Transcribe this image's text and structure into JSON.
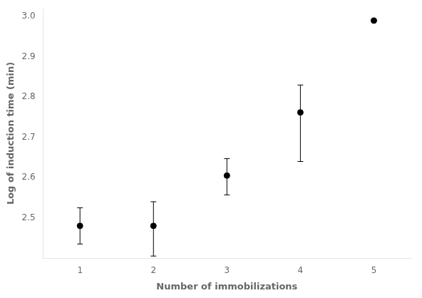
{
  "chart_data": {
    "type": "scatter",
    "x": [
      1,
      2,
      3,
      4,
      5
    ],
    "values": [
      2.48,
      2.48,
      2.605,
      2.762,
      2.99
    ],
    "yerr_upper": [
      0.045,
      0.06,
      0.042,
      0.068,
      0.0
    ],
    "yerr_lower": [
      0.045,
      0.075,
      0.048,
      0.122,
      0.0
    ],
    "xlabel": "Number of immobilizations",
    "ylabel": "Log of induction time (min)",
    "xlim": [
      0.5,
      5.5
    ],
    "ylim": [
      2.4,
      3.02
    ],
    "xticks": [
      1,
      2,
      3,
      4,
      5
    ],
    "yticks": [
      2.5,
      2.6,
      2.7,
      2.8,
      2.9,
      {
        "value": 3.0,
        "label": "3.0"
      }
    ],
    "color": "#000000",
    "marker": "circle",
    "grid": false
  }
}
